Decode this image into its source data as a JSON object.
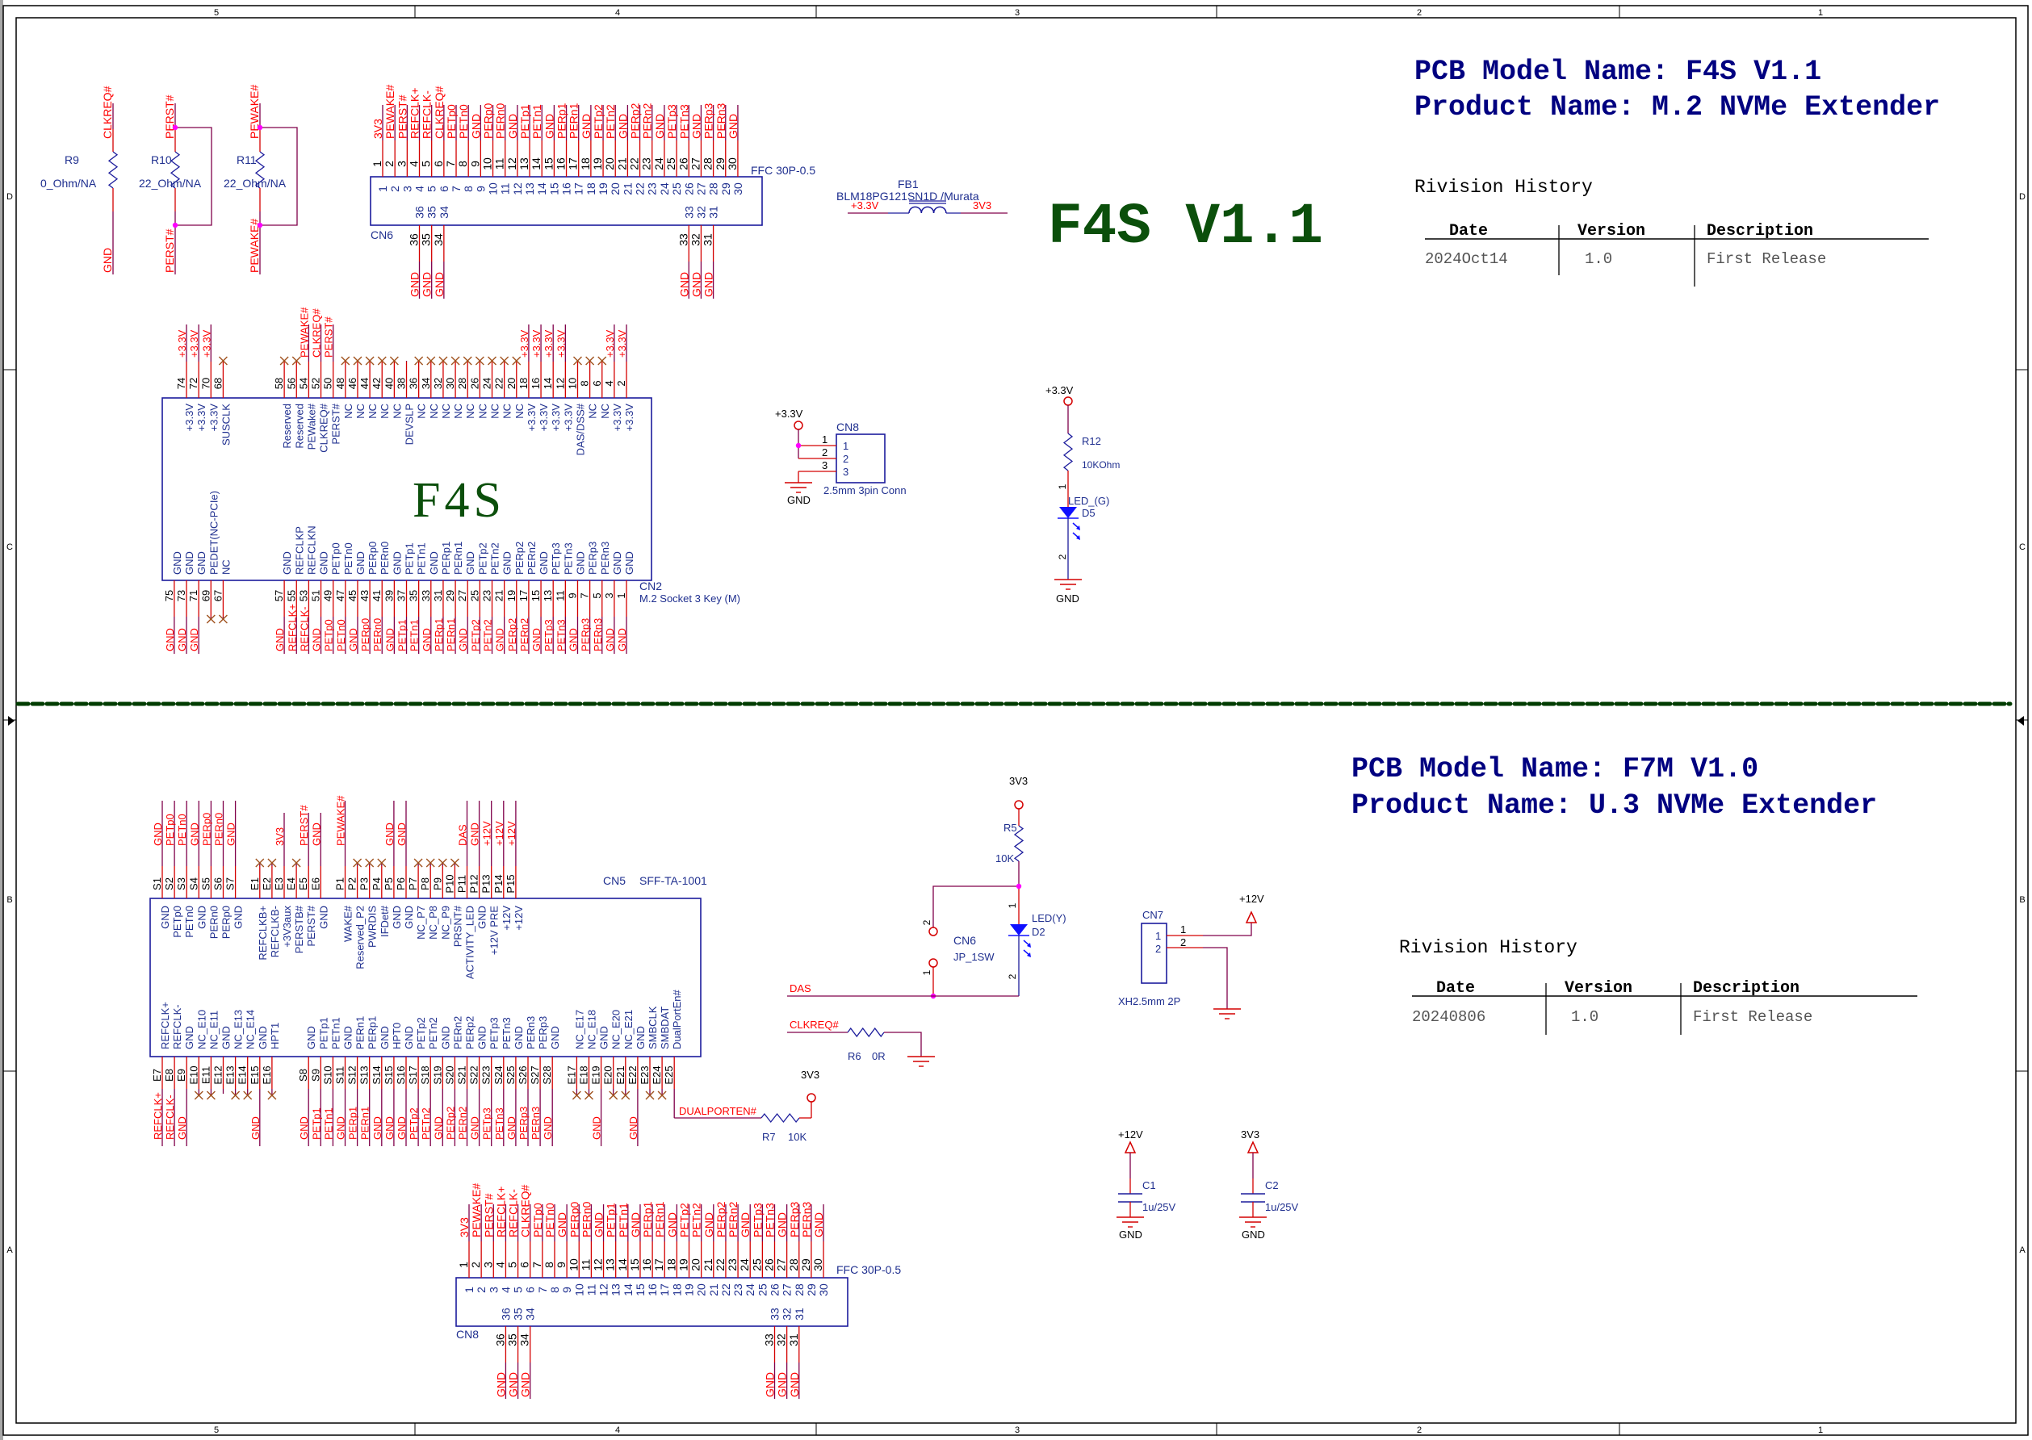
{
  "frame": {
    "columns": [
      "5",
      "4",
      "3",
      "2",
      "1"
    ],
    "rows": [
      "D",
      "C",
      "B",
      "A"
    ]
  },
  "colors": {
    "net_label": "#ff0000",
    "component": "#1c1c9c",
    "component_text": "#1f2f8f",
    "pin_wire": "#d40000",
    "wire": "#80004a",
    "nc_mark": "#a0521e",
    "junction": "#ff00ff",
    "led": "#1010ff",
    "board_label": "#0b4f0b",
    "divider": "#003c00",
    "title": "#000080"
  },
  "top": {
    "title": {
      "model": "PCB Model Name: F4S V1.1",
      "product": "Product Name: M.2 NVMe Extender"
    },
    "board_label": "F4S V1.1",
    "revision": {
      "heading": "Rivision History",
      "columns": [
        "Date",
        "Version",
        "Description"
      ],
      "rows": [
        [
          "2024Oct14",
          "1.0",
          "First Release"
        ]
      ]
    },
    "resistors": [
      {
        "ref": "R9",
        "value": "0_Ohm/NA",
        "net_top": "CLKREQ#",
        "net_bottom": "GND"
      },
      {
        "ref": "R10",
        "value": "22_Ohm/NA",
        "net_top": "PERST#",
        "net_bottom": "PERST#"
      },
      {
        "ref": "R11",
        "value": "22_Ohm/NA",
        "net_top": "PEWAKE#",
        "net_bottom": "PEWAKE#"
      }
    ],
    "cn6": {
      "ref": "CN6",
      "part": "FFC 30P-0.5",
      "top_pins": [
        [
          "1",
          "3V3"
        ],
        [
          "2",
          "PEWAKE#"
        ],
        [
          "3",
          "PERST#"
        ],
        [
          "4",
          "REFCLK+"
        ],
        [
          "5",
          "REFCLK-"
        ],
        [
          "6",
          "CLKREQ#"
        ],
        [
          "7",
          "PETp0"
        ],
        [
          "8",
          "PETn0"
        ],
        [
          "9",
          "GND"
        ],
        [
          "10",
          "PERp0"
        ],
        [
          "11",
          "PERn0"
        ],
        [
          "12",
          "GND"
        ],
        [
          "13",
          "PETp1"
        ],
        [
          "14",
          "PETn1"
        ],
        [
          "15",
          "GND"
        ],
        [
          "16",
          "PERp1"
        ],
        [
          "17",
          "PERn1"
        ],
        [
          "18",
          "GND"
        ],
        [
          "19",
          "PETp2"
        ],
        [
          "20",
          "PETn2"
        ],
        [
          "21",
          "GND"
        ],
        [
          "22",
          "PERp2"
        ],
        [
          "23",
          "PERn2"
        ],
        [
          "24",
          "GND"
        ],
        [
          "25",
          "PETp3"
        ],
        [
          "26",
          "PETn3"
        ],
        [
          "27",
          "GND"
        ],
        [
          "28",
          "PERp3"
        ],
        [
          "29",
          "PERn3"
        ],
        [
          "30",
          "GND"
        ]
      ],
      "bottom_pins": [
        [
          "36",
          "GND"
        ],
        [
          "35",
          "GND"
        ],
        [
          "34",
          "GND"
        ],
        [
          "33",
          "GND"
        ],
        [
          "32",
          "GND"
        ],
        [
          "31",
          "GND"
        ]
      ]
    },
    "fb1": {
      "ref": "FB1",
      "part": "BLM18PG121SN1D /Murata",
      "net_in": "+3.3V",
      "net_out": "3V3"
    },
    "cn2": {
      "ref": "CN2",
      "part": "M.2 Socket 3 Key (M)",
      "body_label": "F4S",
      "top_pins": [
        [
          "74",
          "+3.3V",
          "+3.3V"
        ],
        [
          "72",
          "+3.3V",
          "+3.3V"
        ],
        [
          "70",
          "+3.3V",
          "+3.3V"
        ],
        [
          "68",
          "SUSCLK",
          null
        ],
        [
          "58",
          "Reserved",
          null
        ],
        [
          "56",
          "Reserved",
          null
        ],
        [
          "54",
          "PEWake#",
          "PEWAKE#"
        ],
        [
          "52",
          "CLKREQ#",
          "CLKREQ#"
        ],
        [
          "50",
          "PERST#",
          "PERST#"
        ],
        [
          "48",
          "NC",
          null
        ],
        [
          "46",
          "NC",
          null
        ],
        [
          "44",
          "NC",
          null
        ],
        [
          "42",
          "NC",
          null
        ],
        [
          "40",
          "NC",
          null
        ],
        [
          "38",
          "DEVSLP",
          ""
        ],
        [
          "36",
          "NC",
          null
        ],
        [
          "34",
          "NC",
          null
        ],
        [
          "32",
          "NC",
          null
        ],
        [
          "30",
          "NC",
          null
        ],
        [
          "28",
          "NC",
          null
        ],
        [
          "26",
          "NC",
          null
        ],
        [
          "24",
          "NC",
          null
        ],
        [
          "22",
          "NC",
          null
        ],
        [
          "20",
          "NC",
          null
        ],
        [
          "18",
          "+3.3V",
          "+3.3V"
        ],
        [
          "16",
          "+3.3V",
          "+3.3V"
        ],
        [
          "14",
          "+3.3V",
          "+3.3V"
        ],
        [
          "12",
          "+3.3V",
          "+3.3V"
        ],
        [
          "10",
          "DAS/DSS#",
          null
        ],
        [
          "8",
          "NC",
          null
        ],
        [
          "6",
          "NC",
          null
        ],
        [
          "4",
          "+3.3V",
          "+3.3V"
        ],
        [
          "2",
          "+3.3V",
          "+3.3V"
        ]
      ],
      "bottom_pins": [
        [
          "75",
          "GND",
          "GND"
        ],
        [
          "73",
          "GND",
          "GND"
        ],
        [
          "71",
          "GND",
          "GND"
        ],
        [
          "69",
          "PEDET(NC-PCIe)",
          null
        ],
        [
          "67",
          "NC",
          null
        ],
        [
          "57",
          "GND",
          "GND"
        ],
        [
          "55",
          "REFCLKP",
          "REFCLK+"
        ],
        [
          "53",
          "REFCLKN",
          "REFCLK-"
        ],
        [
          "51",
          "GND",
          "GND"
        ],
        [
          "49",
          "PETp0",
          "PETp0"
        ],
        [
          "47",
          "PETn0",
          "PETn0"
        ],
        [
          "45",
          "GND",
          "GND"
        ],
        [
          "43",
          "PERp0",
          "PERp0"
        ],
        [
          "41",
          "PERn0",
          "PERn0"
        ],
        [
          "39",
          "GND",
          "GND"
        ],
        [
          "37",
          "PETp1",
          "PETp1"
        ],
        [
          "35",
          "PETn1",
          "PETn1"
        ],
        [
          "33",
          "GND",
          "GND"
        ],
        [
          "31",
          "PERp1",
          "PERp1"
        ],
        [
          "29",
          "PERn1",
          "PERn1"
        ],
        [
          "27",
          "GND",
          "GND"
        ],
        [
          "25",
          "PETp2",
          "PETp2"
        ],
        [
          "23",
          "PETn2",
          "PETn2"
        ],
        [
          "21",
          "GND",
          "GND"
        ],
        [
          "19",
          "PERp2",
          "PERp2"
        ],
        [
          "17",
          "PERn2",
          "PERn2"
        ],
        [
          "15",
          "GND",
          "GND"
        ],
        [
          "13",
          "PETp3",
          "PETp3"
        ],
        [
          "11",
          "PETn3",
          "PETn3"
        ],
        [
          "9",
          "GND",
          "GND"
        ],
        [
          "7",
          "PERp3",
          "PERp3"
        ],
        [
          "5",
          "PERn3",
          "PERn3"
        ],
        [
          "3",
          "GND",
          "GND"
        ],
        [
          "1",
          "GND",
          "GND"
        ]
      ]
    },
    "cn8": {
      "ref": "CN8",
      "part": "2.5mm 3pin  Conn",
      "power": "+3.3V",
      "ground": "GND",
      "pins": [
        "1",
        "2",
        "3"
      ]
    },
    "r12": {
      "ref": "R12",
      "value": "10KOhm",
      "power": "+3.3V",
      "led_ref": "D5",
      "led_value": "LED_(G)",
      "pin1": "1",
      "pin2": "2",
      "ground": "GND"
    }
  },
  "bottom": {
    "title": {
      "model": "PCB Model Name: F7M V1.0",
      "product": "Product Name: U.3 NVMe Extender"
    },
    "revision": {
      "heading": "Rivision History",
      "columns": [
        "Date",
        "Version",
        "Description"
      ],
      "rows": [
        [
          "20240806",
          "1.0",
          "First Release"
        ]
      ]
    },
    "cn5": {
      "ref": "CN5",
      "part": "SFF-TA-1001",
      "top_pins": [
        [
          "S1",
          "GND",
          "GND"
        ],
        [
          "S2",
          "PETp0",
          "PETp0"
        ],
        [
          "S3",
          "PETn0",
          "PETn0"
        ],
        [
          "S4",
          "GND",
          "GND"
        ],
        [
          "S5",
          "PERn0",
          "PERp0"
        ],
        [
          "S6",
          "PERp0",
          "PERn0"
        ],
        [
          "S7",
          "GND",
          "GND"
        ],
        [
          "E1",
          "REFCLKB+",
          null
        ],
        [
          "E2",
          "REFCLKB-",
          null
        ],
        [
          "E3",
          "+3V3aux",
          "3V3"
        ],
        [
          "E4",
          "PERSTB#",
          null
        ],
        [
          "E5",
          "PERST#",
          "PERST#"
        ],
        [
          "E6",
          "GND",
          "GND"
        ],
        [
          "P1",
          "WAKE#",
          "PEWAKE#"
        ],
        [
          "P2",
          "Reserved_P2",
          null
        ],
        [
          "P3",
          "PWRDIS",
          null
        ],
        [
          "P4",
          "IFDet#",
          null
        ],
        [
          "P5",
          "GND",
          "GND"
        ],
        [
          "P6",
          "GND",
          "GND"
        ],
        [
          "P7",
          "NC_P7",
          null
        ],
        [
          "P8",
          "NC_P8",
          null
        ],
        [
          "P9",
          "NC_P9",
          null
        ],
        [
          "P10",
          "PRSNT#",
          null
        ],
        [
          "P11",
          "ACTIVITY_LED",
          "DAS"
        ],
        [
          "P12",
          "GND",
          "GND"
        ],
        [
          "P13",
          "+12V PRE",
          "+12V"
        ],
        [
          "P14",
          "+12V",
          "+12V"
        ],
        [
          "P15",
          "+12V",
          "+12V"
        ]
      ],
      "bottom_pins": [
        [
          "E7",
          "REFCLK+",
          "REFCLK+"
        ],
        [
          "E8",
          "REFCLK-",
          "REFCLK-"
        ],
        [
          "E9",
          "GND",
          "GND"
        ],
        [
          "E10",
          "NC_E10",
          null
        ],
        [
          "E11",
          "NC_E11",
          null
        ],
        [
          "E12",
          "GND",
          ""
        ],
        [
          "E13",
          "NC_E13",
          null
        ],
        [
          "E14",
          "NC_E14",
          null
        ],
        [
          "E15",
          "GND",
          "GND"
        ],
        [
          "E16",
          "HPT1",
          null
        ],
        [
          "S8",
          "GND",
          "GND"
        ],
        [
          "S9",
          "PETp1",
          "PETp1"
        ],
        [
          "S10",
          "PETn1",
          "PETn1"
        ],
        [
          "S11",
          "GND",
          "GND"
        ],
        [
          "S12",
          "PERn1",
          "PERp1"
        ],
        [
          "S13",
          "PERp1",
          "PERn1"
        ],
        [
          "S14",
          "GND",
          "GND"
        ],
        [
          "S15",
          "HPT0",
          "GND"
        ],
        [
          "S16",
          "GND",
          "GND"
        ],
        [
          "S17",
          "PETp2",
          "PETp2"
        ],
        [
          "S18",
          "PETn2",
          "PETn2"
        ],
        [
          "S19",
          "GND",
          "GND"
        ],
        [
          "S20",
          "PERn2",
          "PERp2"
        ],
        [
          "S21",
          "PERp2",
          "PERn2"
        ],
        [
          "S22",
          "GND",
          "GND"
        ],
        [
          "S23",
          "PETp3",
          "PETp3"
        ],
        [
          "S24",
          "PETn3",
          "PETn3"
        ],
        [
          "S25",
          "GND",
          "GND"
        ],
        [
          "S26",
          "PERn3",
          "PERp3"
        ],
        [
          "S27",
          "PERp3",
          "PERn3"
        ],
        [
          "S28",
          "GND",
          "GND"
        ],
        [
          "E17",
          "NC_E17",
          null
        ],
        [
          "E18",
          "NC_E18",
          null
        ],
        [
          "E19",
          "GND",
          "GND"
        ],
        [
          "E20",
          "NC_E20",
          null
        ],
        [
          "E21",
          "NC_E21",
          null
        ],
        [
          "E22",
          "GND",
          "GND"
        ],
        [
          "E23",
          "SMBCLK",
          null
        ],
        [
          "E24",
          "SMBDAT",
          null
        ],
        [
          "E25",
          "DualPortEn#",
          ""
        ]
      ]
    },
    "r7": {
      "ref": "R7",
      "value": "10K",
      "net": "DUALPORTEN#",
      "power": "3V3"
    },
    "r5": {
      "ref": "R5",
      "value": "10K",
      "power": "3V3"
    },
    "d2": {
      "ref": "D2",
      "value": "LED(Y)",
      "pin1": "1",
      "pin2": "2"
    },
    "cn6": {
      "ref": "CN6",
      "part": "JP_1SW",
      "pin1": "1",
      "pin2": "2"
    },
    "das_net": "DAS",
    "r6": {
      "ref": "R6",
      "value": "0R",
      "net": "CLKREQ#"
    },
    "cn7": {
      "ref": "CN7",
      "part": "XH2.5mm 2P",
      "power": "+12V",
      "pins": [
        "1",
        "2"
      ]
    },
    "c1": {
      "ref": "C1",
      "value": "1u/25V",
      "power": "+12V",
      "ground": "GND"
    },
    "c2": {
      "ref": "C2",
      "value": "1u/25V",
      "power": "3V3",
      "ground": "GND"
    },
    "cn8": {
      "ref": "CN8",
      "part": "FFC 30P-0.5",
      "top_pins": [
        [
          "1",
          "3V3"
        ],
        [
          "2",
          "PEWAKE#"
        ],
        [
          "3",
          "PERST#"
        ],
        [
          "4",
          "REFCLK+"
        ],
        [
          "5",
          "REFCLK-"
        ],
        [
          "6",
          "CLKREQ#"
        ],
        [
          "7",
          "PETp0"
        ],
        [
          "8",
          "PETn0"
        ],
        [
          "9",
          "GND"
        ],
        [
          "10",
          "PERp0"
        ],
        [
          "11",
          "PERn0"
        ],
        [
          "12",
          "GND"
        ],
        [
          "13",
          "PETp1"
        ],
        [
          "14",
          "PETn1"
        ],
        [
          "15",
          "GND"
        ],
        [
          "16",
          "PERp1"
        ],
        [
          "17",
          "PERn1"
        ],
        [
          "18",
          "GND"
        ],
        [
          "19",
          "PETp2"
        ],
        [
          "20",
          "PETn2"
        ],
        [
          "21",
          "GND"
        ],
        [
          "22",
          "PERp2"
        ],
        [
          "23",
          "PERn2"
        ],
        [
          "24",
          "GND"
        ],
        [
          "25",
          "PETp3"
        ],
        [
          "26",
          "PETn3"
        ],
        [
          "27",
          "GND"
        ],
        [
          "28",
          "PERp3"
        ],
        [
          "29",
          "PERn3"
        ],
        [
          "30",
          "GND"
        ]
      ],
      "bottom_pins": [
        [
          "36",
          "GND"
        ],
        [
          "35",
          "GND"
        ],
        [
          "34",
          "GND"
        ],
        [
          "33",
          "GND"
        ],
        [
          "32",
          "GND"
        ],
        [
          "31",
          "GND"
        ]
      ]
    }
  }
}
